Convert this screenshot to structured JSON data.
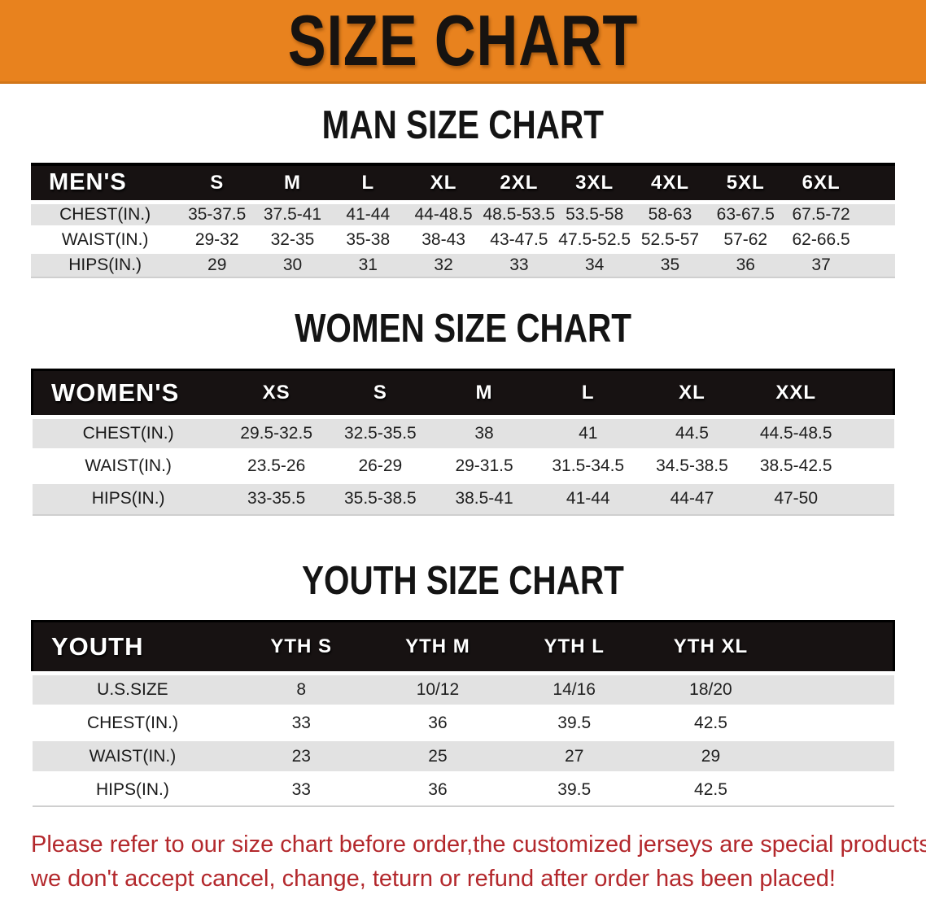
{
  "colors": {
    "banner_bg": "#E8821E",
    "banner_text": "#171310",
    "header_bg": "#171212",
    "header_text": "#FFFFFF",
    "row_bg": "#FFFFFF",
    "row_alt_bg": "#E2E2E2",
    "note_color": "#B3282C"
  },
  "banner": {
    "title": "SIZE CHART"
  },
  "sections": [
    {
      "heading": "MAN SIZE CHART",
      "table": {
        "header_label": "MEN'S",
        "columns": [
          "S",
          "M",
          "L",
          "XL",
          "2XL",
          "3XL",
          "4XL",
          "5XL",
          "6XL"
        ],
        "rows": [
          {
            "label": "CHEST(IN.)",
            "values": [
              "35-37.5",
              "37.5-41",
              "41-44",
              "44-48.5",
              "48.5-53.5",
              "53.5-58",
              "58-63",
              "63-67.5",
              "67.5-72"
            ]
          },
          {
            "label": "WAIST(IN.)",
            "values": [
              "29-32",
              "32-35",
              "35-38",
              "38-43",
              "43-47.5",
              "47.5-52.5",
              "52.5-57",
              "57-62",
              "62-66.5"
            ]
          },
          {
            "label": "HIPS(IN.)",
            "values": [
              "29",
              "30",
              "31",
              "32",
              "33",
              "34",
              "35",
              "36",
              "37"
            ]
          }
        ]
      }
    },
    {
      "heading": "WOMEN SIZE CHART",
      "table": {
        "header_label": "WOMEN'S",
        "columns": [
          "XS",
          "S",
          "M",
          "L",
          "XL",
          "XXL"
        ],
        "rows": [
          {
            "label": "CHEST(IN.)",
            "values": [
              "29.5-32.5",
              "32.5-35.5",
              "38",
              "41",
              "44.5",
              "44.5-48.5"
            ]
          },
          {
            "label": "WAIST(IN.)",
            "values": [
              "23.5-26",
              "26-29",
              "29-31.5",
              "31.5-34.5",
              "34.5-38.5",
              "38.5-42.5"
            ]
          },
          {
            "label": "HIPS(IN.)",
            "values": [
              "33-35.5",
              "35.5-38.5",
              "38.5-41",
              "41-44",
              "44-47",
              "47-50"
            ]
          }
        ]
      }
    },
    {
      "heading": "YOUTH SIZE CHART",
      "table": {
        "header_label": "YOUTH",
        "columns": [
          "YTH S",
          "YTH M",
          "YTH L",
          "YTH XL"
        ],
        "rows": [
          {
            "label": "U.S.SIZE",
            "values": [
              "8",
              "10/12",
              "14/16",
              "18/20"
            ]
          },
          {
            "label": "CHEST(IN.)",
            "values": [
              "33",
              "36",
              "39.5",
              "42.5"
            ]
          },
          {
            "label": "WAIST(IN.)",
            "values": [
              "23",
              "25",
              "27",
              "29"
            ]
          },
          {
            "label": "HIPS(IN.)",
            "values": [
              "33",
              "36",
              "39.5",
              "42.5"
            ]
          }
        ]
      }
    }
  ],
  "note": {
    "line1": "Please refer to our size chart before order,the customized jerseys are special products,",
    "line2": "we don't accept cancel, change, teturn or refund after order has been placed!"
  }
}
